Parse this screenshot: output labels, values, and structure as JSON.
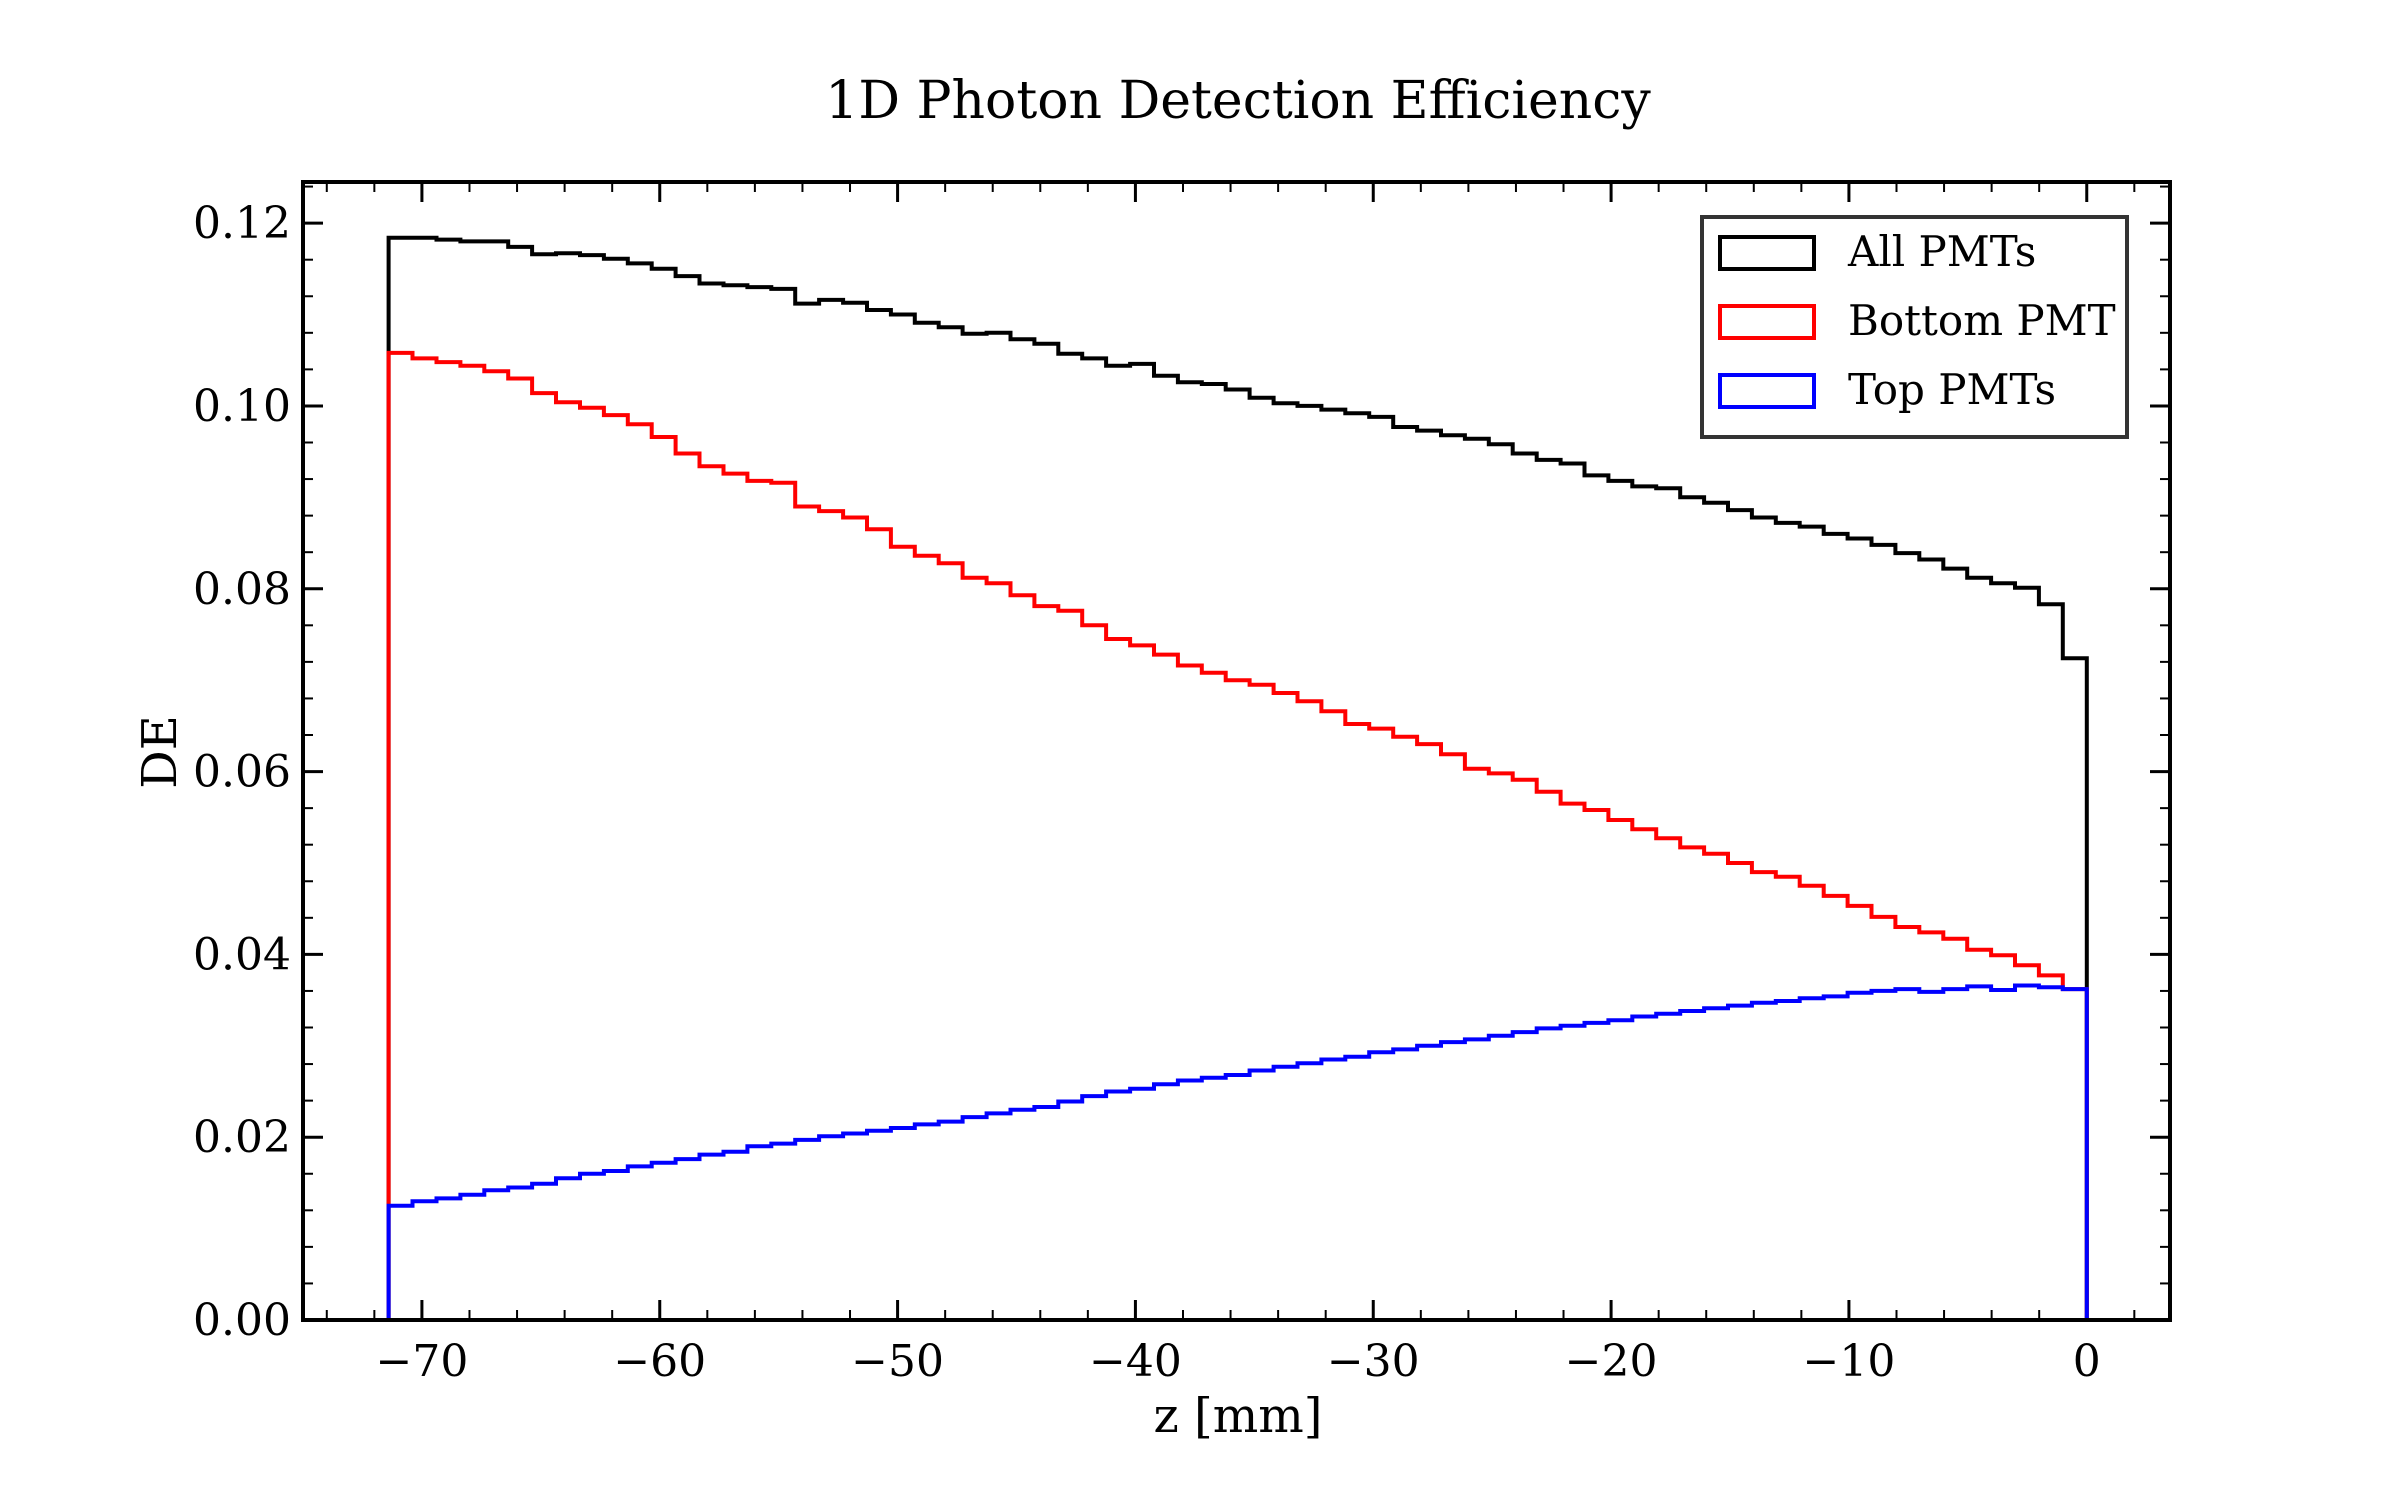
{
  "chart_data": {
    "type": "line",
    "style": "step-histogram",
    "title": "1D Photon Detection Efficiency",
    "xlabel": "z [mm]",
    "ylabel": "DE",
    "xlim": [
      -75,
      3.5
    ],
    "ylim": [
      0,
      0.1245
    ],
    "x_ticks": [
      -70,
      -60,
      -50,
      -40,
      -30,
      -20,
      -10,
      0
    ],
    "x_tick_labels": [
      "−70",
      "−60",
      "−50",
      "−40",
      "−30",
      "−20",
      "−10",
      "0"
    ],
    "y_ticks": [
      0,
      0.02,
      0.04,
      0.06,
      0.08,
      0.1,
      0.12
    ],
    "y_tick_labels": [
      "0.00",
      "0.02",
      "0.04",
      "0.06",
      "0.08",
      "0.10",
      "0.12"
    ],
    "x_minor_step": 2,
    "y_minor_step": 0.004,
    "grid": false,
    "legend_position": "top-right",
    "bins": {
      "start": -71.4,
      "end": 0,
      "count": 71
    },
    "series": [
      {
        "name": "All PMTs",
        "color": "#000000",
        "values": [
          0.1184,
          0.1184,
          0.1182,
          0.118,
          0.118,
          0.1174,
          0.1166,
          0.1167,
          0.1165,
          0.1161,
          0.1156,
          0.115,
          0.1142,
          0.1134,
          0.1132,
          0.113,
          0.1128,
          0.1112,
          0.1116,
          0.1113,
          0.1105,
          0.11,
          0.1091,
          0.1086,
          0.1079,
          0.108,
          0.1073,
          0.1068,
          0.1057,
          0.1052,
          0.1044,
          0.1046,
          0.1033,
          0.1026,
          0.1024,
          0.1018,
          0.1009,
          0.1003,
          0.1,
          0.0996,
          0.0992,
          0.0988,
          0.0977,
          0.0973,
          0.0968,
          0.0964,
          0.0958,
          0.0948,
          0.0941,
          0.0937,
          0.0924,
          0.0918,
          0.0912,
          0.091,
          0.09,
          0.0894,
          0.0886,
          0.0878,
          0.0872,
          0.0868,
          0.086,
          0.0855,
          0.0848,
          0.0839,
          0.0832,
          0.0822,
          0.0812,
          0.0806,
          0.0801,
          0.0783,
          0.0724
        ]
      },
      {
        "name": "Bottom PMT",
        "color": "#ff0000",
        "values": [
          0.1058,
          0.1052,
          0.1048,
          0.1044,
          0.1038,
          0.103,
          0.1014,
          0.1004,
          0.0998,
          0.099,
          0.098,
          0.0966,
          0.0948,
          0.0934,
          0.0926,
          0.0918,
          0.0916,
          0.089,
          0.0885,
          0.0878,
          0.0865,
          0.0846,
          0.0836,
          0.0828,
          0.0812,
          0.0806,
          0.0793,
          0.0781,
          0.0776,
          0.076,
          0.0745,
          0.0738,
          0.0728,
          0.0716,
          0.0708,
          0.07,
          0.0695,
          0.0686,
          0.0677,
          0.0666,
          0.0652,
          0.0647,
          0.0638,
          0.063,
          0.0619,
          0.0603,
          0.0598,
          0.0591,
          0.0578,
          0.0565,
          0.0558,
          0.0547,
          0.0537,
          0.0527,
          0.0517,
          0.051,
          0.05,
          0.049,
          0.0485,
          0.0475,
          0.0464,
          0.0453,
          0.0441,
          0.043,
          0.0424,
          0.0417,
          0.0405,
          0.0399,
          0.0388,
          0.0377,
          0.0362
        ]
      },
      {
        "name": "Top PMTs",
        "color": "#0000ff",
        "values": [
          0.0125,
          0.013,
          0.0133,
          0.0137,
          0.0142,
          0.0145,
          0.0149,
          0.0155,
          0.016,
          0.0163,
          0.0168,
          0.0172,
          0.0176,
          0.0181,
          0.0184,
          0.019,
          0.0193,
          0.0197,
          0.0201,
          0.0204,
          0.0207,
          0.021,
          0.0214,
          0.0217,
          0.0222,
          0.0226,
          0.023,
          0.0233,
          0.0239,
          0.0245,
          0.025,
          0.0253,
          0.0258,
          0.0262,
          0.0265,
          0.0268,
          0.0273,
          0.0277,
          0.0281,
          0.0285,
          0.0288,
          0.0293,
          0.0296,
          0.03,
          0.0304,
          0.0307,
          0.0311,
          0.0315,
          0.0319,
          0.0322,
          0.0325,
          0.0328,
          0.0332,
          0.0335,
          0.0338,
          0.0341,
          0.0344,
          0.0347,
          0.0349,
          0.0352,
          0.0354,
          0.0358,
          0.036,
          0.0362,
          0.0359,
          0.0362,
          0.0365,
          0.0361,
          0.0366,
          0.0364,
          0.0362
        ]
      }
    ]
  }
}
